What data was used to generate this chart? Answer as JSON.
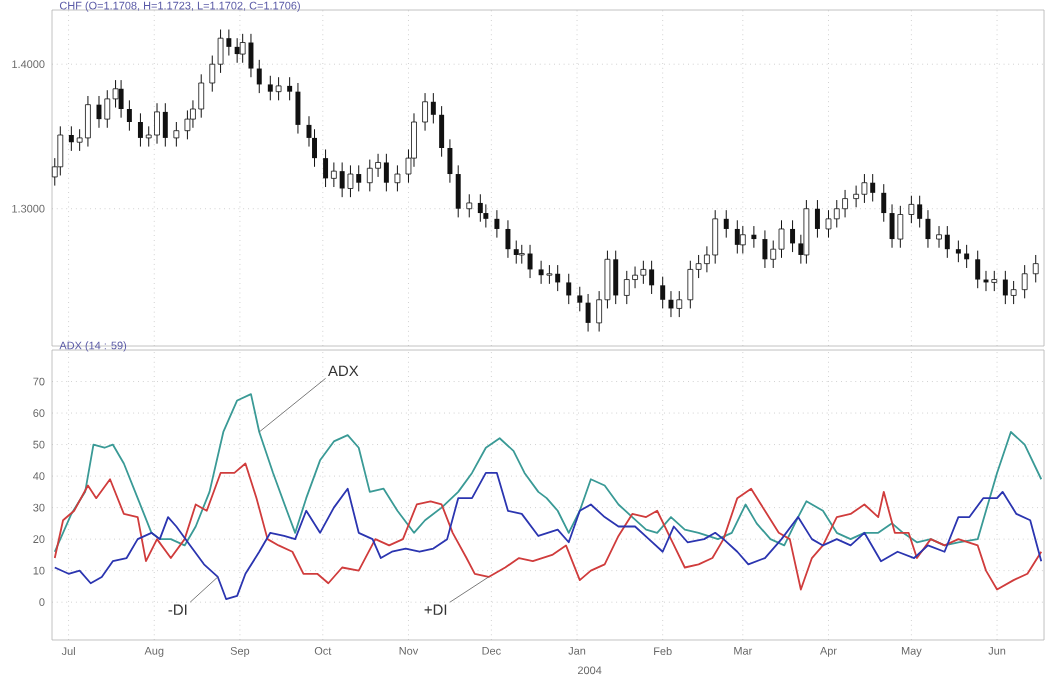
{
  "chart_data": [
    {
      "type": "candlestick",
      "title": "CHF (O=1.1708, H=1.1723, L=1.1702, C=1.1706)",
      "color": "#111111",
      "grid": true,
      "tick_labels": "y",
      "xlim": [
        "2003-06-25",
        "2004-06-18"
      ],
      "ylim": [
        1.205,
        1.4375
      ],
      "xticks": [
        {
          "value": "2003-07-01",
          "label": null
        },
        {
          "value": "2003-08-01",
          "label": null
        },
        {
          "value": "2003-09-01",
          "label": null
        },
        {
          "value": "2003-10-01",
          "label": null
        },
        {
          "value": "2003-11-01",
          "label": null
        },
        {
          "value": "2003-12-01",
          "label": null
        },
        {
          "value": "2004-01-01",
          "label": null
        },
        {
          "value": "2004-02-01",
          "label": null
        },
        {
          "value": "2004-03-01",
          "label": null
        },
        {
          "value": "2004-04-01",
          "label": null
        },
        {
          "value": "2004-05-01",
          "label": null
        },
        {
          "value": "2004-06-01",
          "label": null
        }
      ],
      "yticks": [
        {
          "value": 1.3,
          "label": "1.3000"
        },
        {
          "value": 1.4,
          "label": "1.4000"
        }
      ],
      "x": [
        "2003-06-26",
        "2003-06-28",
        "2003-07-02",
        "2003-07-05",
        "2003-07-08",
        "2003-07-12",
        "2003-07-15",
        "2003-07-18",
        "2003-07-20",
        "2003-07-23",
        "2003-07-27",
        "2003-07-30",
        "2003-08-02",
        "2003-08-05",
        "2003-08-09",
        "2003-08-13",
        "2003-08-15",
        "2003-08-18",
        "2003-08-22",
        "2003-08-25",
        "2003-08-28",
        "2003-08-31",
        "2003-09-02",
        "2003-09-05",
        "2003-09-08",
        "2003-09-12",
        "2003-09-15",
        "2003-09-19",
        "2003-09-22",
        "2003-09-26",
        "2003-09-28",
        "2003-10-02",
        "2003-10-05",
        "2003-10-08",
        "2003-10-11",
        "2003-10-14",
        "2003-10-18",
        "2003-10-21",
        "2003-10-24",
        "2003-10-28",
        "2003-11-01",
        "2003-11-03",
        "2003-11-07",
        "2003-11-10",
        "2003-11-13",
        "2003-11-16",
        "2003-11-19",
        "2003-11-23",
        "2003-11-27",
        "2003-11-29",
        "2003-12-03",
        "2003-12-07",
        "2003-12-10",
        "2003-12-12",
        "2003-12-15",
        "2003-12-19",
        "2003-12-22",
        "2003-12-25",
        "2003-12-29",
        "2004-01-02",
        "2004-01-05",
        "2004-01-09",
        "2004-01-12",
        "2004-01-15",
        "2004-01-19",
        "2004-01-22",
        "2004-01-25",
        "2004-01-28",
        "2004-02-01",
        "2004-02-04",
        "2004-02-07",
        "2004-02-11",
        "2004-02-14",
        "2004-02-17",
        "2004-02-20",
        "2004-02-24",
        "2004-02-28",
        "2004-03-01",
        "2004-03-05",
        "2004-03-09",
        "2004-03-12",
        "2004-03-15",
        "2004-03-19",
        "2004-03-22",
        "2004-03-24",
        "2004-03-28",
        "2004-04-01",
        "2004-04-04",
        "2004-04-07",
        "2004-04-11",
        "2004-04-14",
        "2004-04-17",
        "2004-04-21",
        "2004-04-24",
        "2004-04-27",
        "2004-05-01",
        "2004-05-04",
        "2004-05-07",
        "2004-05-11",
        "2004-05-14",
        "2004-05-18",
        "2004-05-21",
        "2004-05-25",
        "2004-05-28",
        "2004-05-31",
        "2004-06-04",
        "2004-06-07",
        "2004-06-11",
        "2004-06-15"
      ],
      "ohlc": [
        [
          1.322,
          1.335,
          1.316,
          1.329
        ],
        [
          1.329,
          1.357,
          1.323,
          1.351
        ],
        [
          1.351,
          1.357,
          1.34,
          1.346
        ],
        [
          1.346,
          1.355,
          1.34,
          1.349
        ],
        [
          1.349,
          1.378,
          1.343,
          1.372
        ],
        [
          1.372,
          1.378,
          1.356,
          1.362
        ],
        [
          1.362,
          1.382,
          1.356,
          1.376
        ],
        [
          1.376,
          1.389,
          1.37,
          1.383
        ],
        [
          1.383,
          1.389,
          1.363,
          1.369
        ],
        [
          1.369,
          1.375,
          1.354,
          1.36
        ],
        [
          1.36,
          1.366,
          1.343,
          1.349
        ],
        [
          1.349,
          1.357,
          1.343,
          1.351
        ],
        [
          1.351,
          1.373,
          1.345,
          1.367
        ],
        [
          1.367,
          1.373,
          1.343,
          1.349
        ],
        [
          1.349,
          1.36,
          1.343,
          1.354
        ],
        [
          1.354,
          1.368,
          1.348,
          1.362
        ],
        [
          1.362,
          1.375,
          1.356,
          1.369
        ],
        [
          1.369,
          1.393,
          1.363,
          1.387
        ],
        [
          1.387,
          1.406,
          1.381,
          1.4
        ],
        [
          1.4,
          1.424,
          1.394,
          1.418
        ],
        [
          1.418,
          1.424,
          1.406,
          1.412
        ],
        [
          1.412,
          1.418,
          1.401,
          1.407
        ],
        [
          1.407,
          1.421,
          1.401,
          1.415
        ],
        [
          1.415,
          1.421,
          1.391,
          1.397
        ],
        [
          1.397,
          1.403,
          1.38,
          1.386
        ],
        [
          1.386,
          1.392,
          1.375,
          1.381
        ],
        [
          1.381,
          1.391,
          1.375,
          1.385
        ],
        [
          1.385,
          1.391,
          1.375,
          1.381
        ],
        [
          1.381,
          1.387,
          1.352,
          1.358
        ],
        [
          1.358,
          1.364,
          1.343,
          1.349
        ],
        [
          1.349,
          1.355,
          1.329,
          1.335
        ],
        [
          1.335,
          1.341,
          1.315,
          1.321
        ],
        [
          1.321,
          1.332,
          1.315,
          1.326
        ],
        [
          1.326,
          1.332,
          1.308,
          1.314
        ],
        [
          1.314,
          1.33,
          1.308,
          1.324
        ],
        [
          1.324,
          1.33,
          1.312,
          1.318
        ],
        [
          1.318,
          1.334,
          1.312,
          1.328
        ],
        [
          1.328,
          1.338,
          1.322,
          1.332
        ],
        [
          1.332,
          1.338,
          1.312,
          1.318
        ],
        [
          1.318,
          1.33,
          1.312,
          1.324
        ],
        [
          1.324,
          1.341,
          1.318,
          1.335
        ],
        [
          1.335,
          1.366,
          1.329,
          1.36
        ],
        [
          1.36,
          1.38,
          1.354,
          1.374
        ],
        [
          1.374,
          1.38,
          1.359,
          1.365
        ],
        [
          1.365,
          1.371,
          1.336,
          1.342
        ],
        [
          1.342,
          1.348,
          1.318,
          1.324
        ],
        [
          1.324,
          1.33,
          1.294,
          1.3
        ],
        [
          1.3,
          1.31,
          1.294,
          1.304
        ],
        [
          1.304,
          1.31,
          1.291,
          1.297
        ],
        [
          1.297,
          1.303,
          1.287,
          1.293
        ],
        [
          1.293,
          1.299,
          1.28,
          1.286
        ],
        [
          1.286,
          1.292,
          1.266,
          1.272
        ],
        [
          1.272,
          1.278,
          1.262,
          1.268
        ],
        [
          1.268,
          1.275,
          1.262,
          1.269
        ],
        [
          1.269,
          1.275,
          1.252,
          1.258
        ],
        [
          1.258,
          1.264,
          1.248,
          1.254
        ],
        [
          1.254,
          1.261,
          1.248,
          1.255
        ],
        [
          1.255,
          1.261,
          1.243,
          1.249
        ],
        [
          1.249,
          1.255,
          1.234,
          1.24
        ],
        [
          1.24,
          1.246,
          1.229,
          1.235
        ],
        [
          1.235,
          1.241,
          1.215,
          1.221
        ],
        [
          1.221,
          1.243,
          1.215,
          1.237
        ],
        [
          1.237,
          1.271,
          1.231,
          1.265
        ],
        [
          1.265,
          1.271,
          1.234,
          1.24
        ],
        [
          1.24,
          1.257,
          1.234,
          1.251
        ],
        [
          1.251,
          1.26,
          1.245,
          1.254
        ],
        [
          1.254,
          1.264,
          1.248,
          1.258
        ],
        [
          1.258,
          1.264,
          1.241,
          1.247
        ],
        [
          1.247,
          1.253,
          1.231,
          1.237
        ],
        [
          1.237,
          1.243,
          1.225,
          1.231
        ],
        [
          1.231,
          1.243,
          1.225,
          1.237
        ],
        [
          1.237,
          1.264,
          1.231,
          1.258
        ],
        [
          1.258,
          1.268,
          1.252,
          1.262
        ],
        [
          1.262,
          1.274,
          1.256,
          1.268
        ],
        [
          1.268,
          1.299,
          1.262,
          1.293
        ],
        [
          1.293,
          1.299,
          1.28,
          1.286
        ],
        [
          1.286,
          1.292,
          1.269,
          1.275
        ],
        [
          1.275,
          1.288,
          1.269,
          1.282
        ],
        [
          1.282,
          1.288,
          1.273,
          1.279
        ],
        [
          1.279,
          1.285,
          1.259,
          1.265
        ],
        [
          1.265,
          1.278,
          1.259,
          1.272
        ],
        [
          1.272,
          1.292,
          1.266,
          1.286
        ],
        [
          1.286,
          1.292,
          1.27,
          1.276
        ],
        [
          1.276,
          1.282,
          1.262,
          1.268
        ],
        [
          1.268,
          1.306,
          1.262,
          1.3
        ],
        [
          1.3,
          1.306,
          1.28,
          1.286
        ],
        [
          1.286,
          1.299,
          1.28,
          1.293
        ],
        [
          1.293,
          1.306,
          1.287,
          1.3
        ],
        [
          1.3,
          1.313,
          1.294,
          1.307
        ],
        [
          1.307,
          1.316,
          1.301,
          1.31
        ],
        [
          1.31,
          1.324,
          1.304,
          1.318
        ],
        [
          1.318,
          1.324,
          1.305,
          1.311
        ],
        [
          1.311,
          1.317,
          1.291,
          1.297
        ],
        [
          1.297,
          1.303,
          1.273,
          1.279
        ],
        [
          1.279,
          1.302,
          1.273,
          1.296
        ],
        [
          1.296,
          1.309,
          1.29,
          1.303
        ],
        [
          1.303,
          1.309,
          1.287,
          1.293
        ],
        [
          1.293,
          1.299,
          1.273,
          1.279
        ],
        [
          1.279,
          1.288,
          1.273,
          1.282
        ],
        [
          1.282,
          1.288,
          1.266,
          1.272
        ],
        [
          1.272,
          1.278,
          1.263,
          1.269
        ],
        [
          1.269,
          1.275,
          1.259,
          1.265
        ],
        [
          1.265,
          1.271,
          1.245,
          1.251
        ],
        [
          1.251,
          1.257,
          1.243,
          1.249
        ],
        [
          1.249,
          1.257,
          1.243,
          1.251
        ],
        [
          1.251,
          1.257,
          1.234,
          1.24
        ],
        [
          1.24,
          1.25,
          1.234,
          1.244
        ],
        [
          1.244,
          1.261,
          1.238,
          1.255
        ],
        [
          1.255,
          1.268,
          1.249,
          1.262
        ]
      ]
    },
    {
      "type": "line",
      "title": "ADX (14 : 59)",
      "grid": true,
      "xlim": [
        "2003-06-25",
        "2004-06-18"
      ],
      "ylim": [
        -12,
        80
      ],
      "xticks": [
        {
          "value": "2003-07-01",
          "label": "Jul"
        },
        {
          "value": "2003-08-01",
          "label": "Aug"
        },
        {
          "value": "2003-09-01",
          "label": "Sep"
        },
        {
          "value": "2003-10-01",
          "label": "Oct"
        },
        {
          "value": "2003-11-01",
          "label": "Nov"
        },
        {
          "value": "2003-12-01",
          "label": "Dec"
        },
        {
          "value": "2004-01-01",
          "label": "Jan"
        },
        {
          "value": "2004-02-01",
          "label": "Feb"
        },
        {
          "value": "2004-03-01",
          "label": "Mar"
        },
        {
          "value": "2004-04-01",
          "label": "Apr"
        },
        {
          "value": "2004-05-01",
          "label": "May"
        },
        {
          "value": "2004-06-01",
          "label": "Jun"
        }
      ],
      "yticks": [
        0,
        10,
        20,
        30,
        40,
        50,
        60,
        70
      ],
      "annotations": [
        "2004"
      ],
      "series": [
        {
          "name": "ADX",
          "color": "#3a9a96",
          "x": [
            "2003-06-26",
            "2003-07-02",
            "2003-07-07",
            "2003-07-10",
            "2003-07-14",
            "2003-07-17",
            "2003-07-21",
            "2003-07-26",
            "2003-07-31",
            "2003-08-03",
            "2003-08-07",
            "2003-08-12",
            "2003-08-16",
            "2003-08-21",
            "2003-08-26",
            "2003-08-31",
            "2003-09-05",
            "2003-09-08",
            "2003-09-13",
            "2003-09-18",
            "2003-09-21",
            "2003-09-25",
            "2003-09-30",
            "2003-10-05",
            "2003-10-10",
            "2003-10-14",
            "2003-10-18",
            "2003-10-23",
            "2003-10-28",
            "2003-11-03",
            "2003-11-07",
            "2003-11-13",
            "2003-11-19",
            "2003-11-24",
            "2003-11-29",
            "2003-12-04",
            "2003-12-09",
            "2003-12-13",
            "2003-12-18",
            "2003-12-21",
            "2003-12-25",
            "2003-12-29",
            "2004-01-02",
            "2004-01-06",
            "2004-01-11",
            "2004-01-16",
            "2004-01-21",
            "2004-01-26",
            "2004-01-30",
            "2004-02-04",
            "2004-02-09",
            "2004-02-14",
            "2004-02-21",
            "2004-02-26",
            "2004-03-02",
            "2004-03-06",
            "2004-03-11",
            "2004-03-16",
            "2004-03-21",
            "2004-03-24",
            "2004-03-30",
            "2004-04-04",
            "2004-04-09",
            "2004-04-14",
            "2004-04-19",
            "2004-04-24",
            "2004-04-28",
            "2004-05-03",
            "2004-05-08",
            "2004-05-13",
            "2004-05-18",
            "2004-05-25",
            "2004-05-28",
            "2004-06-01",
            "2004-06-06",
            "2004-06-11",
            "2004-06-17"
          ],
          "values": [
            16,
            28,
            35,
            50,
            49,
            50,
            44,
            33,
            22,
            20,
            20,
            18,
            24,
            35,
            54,
            64,
            66,
            54,
            41,
            29,
            22,
            33,
            45,
            51,
            53,
            49,
            35,
            36,
            29,
            22,
            26,
            30,
            35,
            41,
            49,
            52,
            48,
            41,
            35,
            33,
            29,
            22,
            29,
            39,
            37,
            31,
            27,
            23,
            22,
            27,
            23,
            22,
            20,
            22,
            31,
            25,
            20,
            18,
            27,
            32,
            29,
            22,
            20,
            22,
            22,
            25,
            22,
            19,
            20,
            18,
            19,
            20,
            29,
            41,
            54,
            50,
            39
          ]
        },
        {
          "name": "+DI",
          "color": "#d03c3c",
          "x": [
            "2003-06-26",
            "2003-06-29",
            "2003-07-03",
            "2003-07-08",
            "2003-07-11",
            "2003-07-16",
            "2003-07-21",
            "2003-07-26",
            "2003-07-29",
            "2003-08-02",
            "2003-08-07",
            "2003-08-12",
            "2003-08-16",
            "2003-08-20",
            "2003-08-25",
            "2003-08-30",
            "2003-09-03",
            "2003-09-07",
            "2003-09-11",
            "2003-09-15",
            "2003-09-20",
            "2003-09-24",
            "2003-09-29",
            "2003-10-03",
            "2003-10-08",
            "2003-10-14",
            "2003-10-20",
            "2003-10-25",
            "2003-10-30",
            "2003-11-04",
            "2003-11-09",
            "2003-11-13",
            "2003-11-17",
            "2003-11-22",
            "2003-11-25",
            "2003-11-30",
            "2003-12-06",
            "2003-12-11",
            "2003-12-16",
            "2003-12-23",
            "2003-12-28",
            "2004-01-02",
            "2004-01-06",
            "2004-01-11",
            "2004-01-16",
            "2004-01-21",
            "2004-01-26",
            "2004-01-30",
            "2004-02-04",
            "2004-02-09",
            "2004-02-14",
            "2004-02-19",
            "2004-02-23",
            "2004-02-28",
            "2004-03-04",
            "2004-03-09",
            "2004-03-14",
            "2004-03-18",
            "2004-03-22",
            "2004-03-26",
            "2004-03-30",
            "2004-04-04",
            "2004-04-09",
            "2004-04-14",
            "2004-04-19",
            "2004-04-21",
            "2004-04-25",
            "2004-04-30",
            "2004-05-03",
            "2004-05-08",
            "2004-05-13",
            "2004-05-18",
            "2004-05-25",
            "2004-05-28",
            "2004-06-01",
            "2004-06-07",
            "2004-06-12",
            "2004-06-17"
          ],
          "values": [
            14,
            26,
            29,
            37,
            33,
            39,
            28,
            27,
            13,
            20,
            14,
            20,
            31,
            29,
            41,
            41,
            44,
            33,
            20,
            18,
            16,
            9,
            9,
            6,
            11,
            10,
            20,
            18,
            20,
            31,
            32,
            31,
            22,
            14,
            9,
            8,
            11,
            14,
            13,
            15,
            18,
            7,
            10,
            12,
            21,
            28,
            27,
            29,
            20,
            11,
            12,
            14,
            20,
            33,
            36,
            29,
            22,
            20,
            4,
            14,
            18,
            27,
            28,
            31,
            27,
            35,
            22,
            22,
            14,
            20,
            18,
            20,
            18,
            10,
            4,
            7,
            9,
            16
          ]
        },
        {
          "name": "-DI",
          "color": "#2b35b0",
          "x": [
            "2003-06-26",
            "2003-07-01",
            "2003-07-05",
            "2003-07-09",
            "2003-07-13",
            "2003-07-17",
            "2003-07-22",
            "2003-07-26",
            "2003-07-31",
            "2003-08-03",
            "2003-08-06",
            "2003-08-09",
            "2003-08-14",
            "2003-08-19",
            "2003-08-24",
            "2003-08-27",
            "2003-08-31",
            "2003-09-03",
            "2003-09-08",
            "2003-09-12",
            "2003-09-17",
            "2003-09-21",
            "2003-09-25",
            "2003-09-30",
            "2003-10-05",
            "2003-10-10",
            "2003-10-14",
            "2003-10-19",
            "2003-10-22",
            "2003-10-26",
            "2003-10-31",
            "2003-11-05",
            "2003-11-10",
            "2003-11-15",
            "2003-11-19",
            "2003-11-24",
            "2003-11-29",
            "2003-12-03",
            "2003-12-07",
            "2003-12-12",
            "2003-12-18",
            "2003-12-25",
            "2003-12-29",
            "2004-01-02",
            "2004-01-06",
            "2004-01-11",
            "2004-01-16",
            "2004-01-22",
            "2004-01-27",
            "2004-02-01",
            "2004-02-05",
            "2004-02-10",
            "2004-02-16",
            "2004-02-20",
            "2004-02-23",
            "2004-02-28",
            "2004-03-03",
            "2004-03-09",
            "2004-03-15",
            "2004-03-21",
            "2004-03-26",
            "2004-03-30",
            "2004-04-04",
            "2004-04-09",
            "2004-04-14",
            "2004-04-20",
            "2004-04-26",
            "2004-05-02",
            "2004-05-07",
            "2004-05-13",
            "2004-05-18",
            "2004-05-22",
            "2004-05-27",
            "2004-06-01",
            "2004-06-03",
            "2004-06-08",
            "2004-06-13",
            "2004-06-17"
          ],
          "values": [
            11,
            9,
            10,
            6,
            8,
            13,
            14,
            20,
            22,
            20,
            27,
            24,
            18,
            12,
            8,
            1,
            2,
            9,
            16,
            22,
            21,
            20,
            29,
            22,
            30,
            36,
            22,
            20,
            14,
            16,
            17,
            16,
            17,
            20,
            33,
            33,
            41,
            41,
            29,
            28,
            21,
            23,
            19,
            29,
            31,
            27,
            24,
            24,
            20,
            16,
            24,
            19,
            20,
            22,
            20,
            16,
            12,
            14,
            20,
            27,
            20,
            18,
            20,
            18,
            22,
            13,
            16,
            14,
            18,
            16,
            27,
            27,
            33,
            33,
            35,
            28,
            26,
            13
          ]
        }
      ]
    }
  ]
}
